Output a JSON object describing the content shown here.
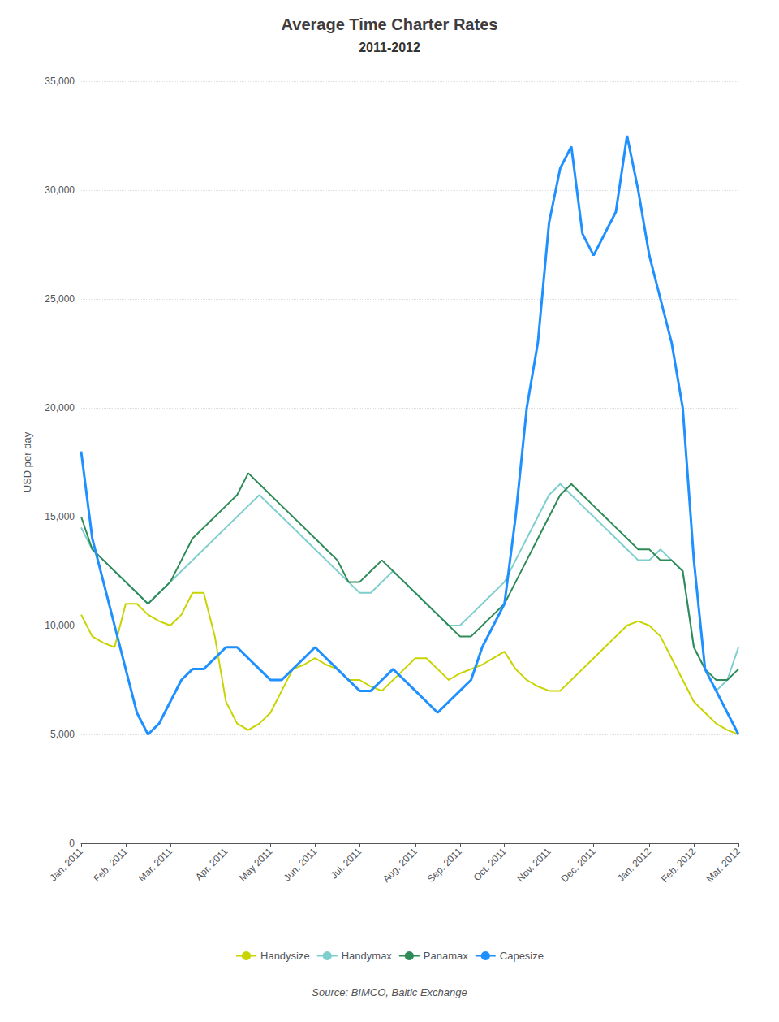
{
  "chart_data": {
    "type": "line",
    "title": "Average Time Charter Rates",
    "subtitle": "2011-2012",
    "ylabel": "USD per day",
    "source": "Source: BIMCO, Baltic Exchange",
    "categories": [
      "Jan. 2011",
      null,
      null,
      null,
      "Feb. 2011",
      null,
      null,
      null,
      "Mar. 2011",
      null,
      null,
      null,
      null,
      "Apr. 2011",
      null,
      null,
      null,
      "May 2011",
      null,
      null,
      null,
      "Jun. 2011",
      null,
      null,
      null,
      "Jul. 2011",
      null,
      null,
      null,
      null,
      "Aug. 2011",
      null,
      null,
      null,
      "Sep. 2011",
      null,
      null,
      null,
      "Oct. 2011",
      null,
      null,
      null,
      "Nov. 2011",
      null,
      null,
      null,
      "Dec. 2011",
      null,
      null,
      null,
      null,
      "Jan. 2012",
      null,
      null,
      null,
      "Feb. 2012",
      null,
      null,
      null,
      "Mar. 2012"
    ],
    "series": [
      {
        "name": "Handysize",
        "color": "#c8d400",
        "values": [
          10500,
          9500,
          9200,
          9000,
          11000,
          11000,
          10500,
          10200,
          10000,
          10500,
          11500,
          11500,
          9500,
          6500,
          5500,
          5200,
          5500,
          6000,
          7000,
          8000,
          8200,
          8500,
          8200,
          8000,
          7500,
          7500,
          7200,
          7000,
          7500,
          8000,
          8500,
          8500,
          8000,
          7500,
          7800,
          8000,
          8200,
          8500,
          8800,
          8000,
          7500,
          7200,
          7000,
          7000,
          7500,
          8000,
          8500,
          9000,
          9500,
          10000,
          10200,
          10000,
          9500,
          8500,
          7500,
          6500,
          6000,
          5500,
          5200,
          5000
        ]
      },
      {
        "name": "Handymax",
        "color": "#7ecece",
        "values": [
          14500,
          13500,
          13000,
          12500,
          12000,
          11500,
          11000,
          11500,
          12000,
          12500,
          13000,
          13500,
          14000,
          14500,
          15000,
          15500,
          16000,
          15500,
          15000,
          14500,
          14000,
          13500,
          13000,
          12500,
          12000,
          11500,
          11500,
          12000,
          12500,
          12000,
          11500,
          11000,
          10500,
          10000,
          10000,
          10500,
          11000,
          11500,
          12000,
          13000,
          14000,
          15000,
          16000,
          16500,
          16000,
          15500,
          15000,
          14500,
          14000,
          13500,
          13000,
          13000,
          13500,
          13000,
          12500,
          9000,
          8000,
          7000,
          7500,
          9000
        ]
      },
      {
        "name": "Panamax",
        "color": "#2e8b57",
        "values": [
          15000,
          13500,
          13000,
          12500,
          12000,
          11500,
          11000,
          11500,
          12000,
          13000,
          14000,
          14500,
          15000,
          15500,
          16000,
          17000,
          16500,
          16000,
          15500,
          15000,
          14500,
          14000,
          13500,
          13000,
          12000,
          12000,
          12500,
          13000,
          12500,
          12000,
          11500,
          11000,
          10500,
          10000,
          9500,
          9500,
          10000,
          10500,
          11000,
          12000,
          13000,
          14000,
          15000,
          16000,
          16500,
          16000,
          15500,
          15000,
          14500,
          14000,
          13500,
          13500,
          13000,
          13000,
          12500,
          9000,
          8000,
          7500,
          7500,
          8000
        ]
      },
      {
        "name": "Capesize",
        "color": "#1e90ff",
        "values": [
          18000,
          14000,
          12000,
          10000,
          8000,
          6000,
          5000,
          5500,
          6500,
          7500,
          8000,
          8000,
          8500,
          9000,
          9000,
          8500,
          8000,
          7500,
          7500,
          8000,
          8500,
          9000,
          8500,
          8000,
          7500,
          7000,
          7000,
          7500,
          8000,
          7500,
          7000,
          6500,
          6000,
          6500,
          7000,
          7500,
          9000,
          10000,
          11000,
          15000,
          20000,
          23000,
          28500,
          31000,
          32000,
          28000,
          27000,
          28000,
          29000,
          32500,
          30000,
          27000,
          25000,
          23000,
          20000,
          13000,
          8000,
          7000,
          6000,
          5000
        ]
      }
    ],
    "ylim": [
      0,
      35000
    ],
    "yticks": [
      0,
      {
        "value": 5000,
        "label": "5,000"
      },
      {
        "value": 10000,
        "label": "10,000"
      },
      {
        "value": 15000,
        "label": "15,000"
      },
      {
        "value": 20000,
        "label": "20,000"
      },
      {
        "value": 25000,
        "label": "25,000"
      },
      {
        "value": 30000,
        "label": "30,000"
      },
      {
        "value": 35000,
        "label": "35,000"
      }
    ],
    "grid": true,
    "legend": "bottom"
  }
}
